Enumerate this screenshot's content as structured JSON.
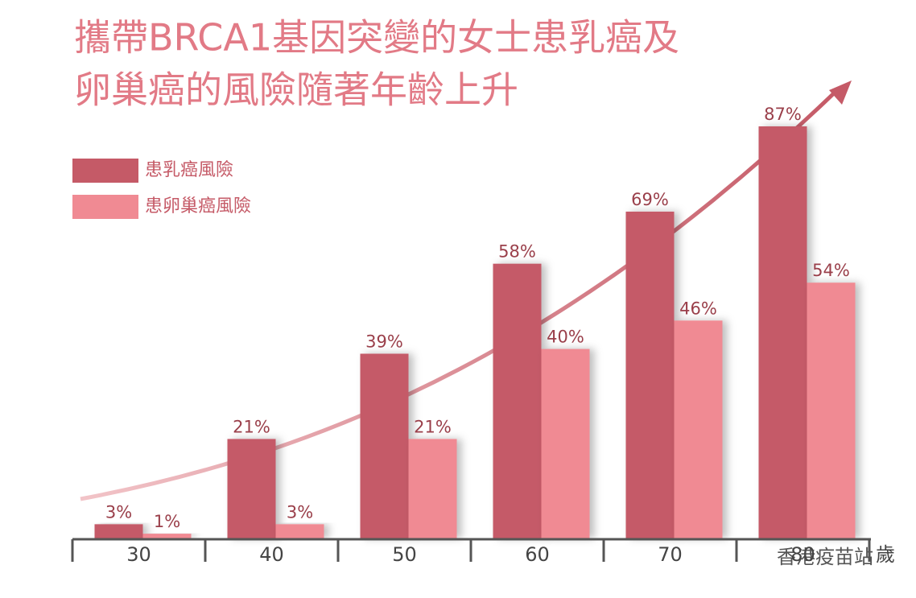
{
  "chart_data": {
    "type": "bar",
    "title": [
      "攜帶BRCA1基因突變的女士患乳癌及",
      "卵巢癌的風險隨著年齡上升"
    ],
    "categories": [
      "30",
      "40",
      "50",
      "60",
      "70",
      "80"
    ],
    "x_unit": "歲",
    "watermark": "香港疫苗站",
    "ylim": [
      0,
      100
    ],
    "series": [
      {
        "name": "患乳癌風險",
        "color": "#c55a67",
        "values": [
          3,
          21,
          39,
          58,
          69,
          87
        ],
        "value_labels": [
          "3%",
          "21%",
          "39%",
          "58%",
          "69%",
          "87%"
        ]
      },
      {
        "name": "患卵巢癌風險",
        "color": "#f08a93",
        "values": [
          1,
          3,
          21,
          40,
          46,
          54
        ],
        "value_labels": [
          "1%",
          "3%",
          "21%",
          "40%",
          "46%",
          "54%"
        ]
      }
    ]
  }
}
